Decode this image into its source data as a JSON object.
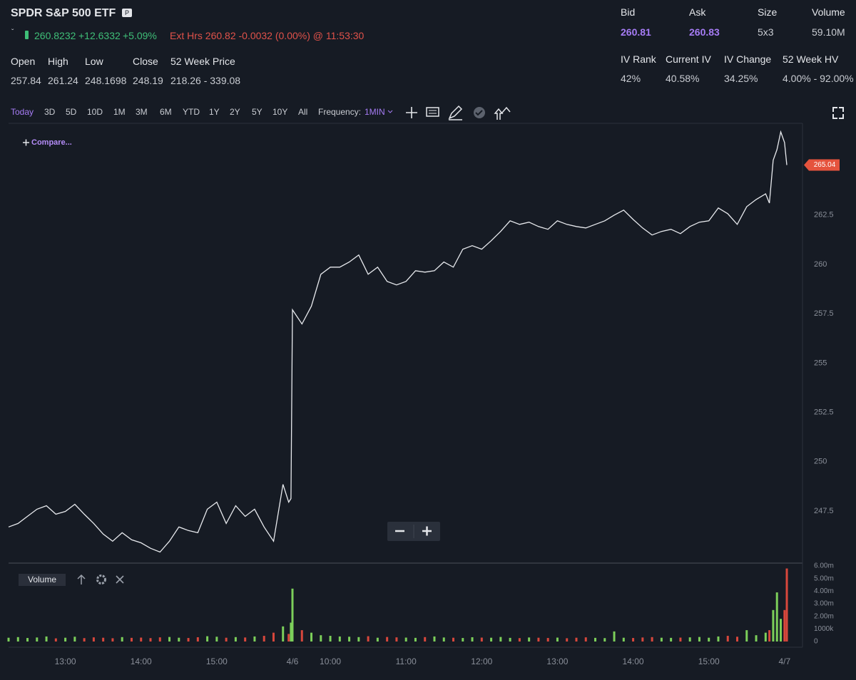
{
  "header": {
    "title": "SPDR S&P 500 ETF",
    "badge": "P",
    "price": "260.8232",
    "change": "+12.6332",
    "change_pct": "+5.09%",
    "ext_hours": "Ext Hrs 260.82 -0.0032 (0.00%) @ 11:53:30"
  },
  "stats": {
    "labels": [
      "Open",
      "High",
      "Low",
      "Close",
      "52 Week Price"
    ],
    "values": [
      "257.84",
      "261.24",
      "248.1698",
      "248.19",
      "218.26 - 339.08"
    ]
  },
  "quote": {
    "labels": [
      "Bid",
      "Ask",
      "Size",
      "Volume"
    ],
    "values": [
      "260.81",
      "260.83",
      "5x3",
      "59.10M"
    ]
  },
  "volatility": {
    "labels": [
      "IV Rank",
      "Current IV",
      "IV Change",
      "52 Week HV"
    ],
    "values": [
      "42%",
      "40.58%",
      "34.25%",
      "4.00% - 92.00%"
    ]
  },
  "toolbar": {
    "ranges": [
      "Today",
      "3D",
      "5D",
      "10D",
      "1M",
      "3M",
      "6M",
      "YTD",
      "1Y",
      "2Y",
      "5Y",
      "10Y",
      "All"
    ],
    "frequency_label": "Frequency:",
    "frequency": "1MIN"
  },
  "chart_data": [
    {
      "type": "line",
      "compare": "Compare...",
      "color": "#e8eaee",
      "tag_color": "#e5533d",
      "x": [
        12.25,
        12.375,
        12.5,
        12.625,
        12.75,
        12.875,
        13,
        13.125,
        13.25,
        13.375,
        13.5,
        13.625,
        13.75,
        13.875,
        14,
        14.125,
        14.25,
        14.375,
        14.5,
        14.625,
        14.75,
        14.875,
        15,
        15.125,
        15.25,
        15.375,
        15.5,
        15.625,
        15.75,
        15.875,
        15.95,
        15.98,
        16,
        16.125,
        16.25,
        16.375,
        16.5,
        16.625,
        16.75,
        16.875,
        17,
        17.125,
        17.25,
        17.375,
        17.5,
        17.625,
        17.75,
        17.875,
        18,
        18.125,
        18.25,
        18.375,
        18.5,
        18.625,
        18.75,
        18.875,
        19,
        19.125,
        19.25,
        19.375,
        19.5,
        19.625,
        19.75,
        19.875,
        20,
        20.125,
        20.25,
        20.375,
        20.5,
        20.625,
        20.75,
        20.875,
        21,
        21.125,
        21.25,
        21.375,
        21.5,
        21.625,
        21.75,
        21.875,
        22,
        22.125,
        22.25,
        22.3,
        22.35,
        22.4,
        22.45,
        22.5,
        22.53
      ],
      "values": [
        246.69,
        246.87,
        247.23,
        247.59,
        247.77,
        247.34,
        247.48,
        247.84,
        247.34,
        246.87,
        246.33,
        245.97,
        246.4,
        246.04,
        245.89,
        245.61,
        245.42,
        245.97,
        246.69,
        246.51,
        246.4,
        247.59,
        247.95,
        246.87,
        247.77,
        247.23,
        247.59,
        246.69,
        245.97,
        248.85,
        247.95,
        248.13,
        257.7,
        256.98,
        257.88,
        259.5,
        259.86,
        259.86,
        260.12,
        260.48,
        259.5,
        259.86,
        259.14,
        258.96,
        259.14,
        259.68,
        259.61,
        259.68,
        260.12,
        259.86,
        260.77,
        260.95,
        260.77,
        261.2,
        261.67,
        262.21,
        262.03,
        262.14,
        261.92,
        261.78,
        262.21,
        262.03,
        261.92,
        261.85,
        262.03,
        262.21,
        262.5,
        262.75,
        262.28,
        261.85,
        261.49,
        261.67,
        261.78,
        261.56,
        261.92,
        262.14,
        262.21,
        262.86,
        262.57,
        262.03,
        262.93,
        263.29,
        263.58,
        263.11,
        265.28,
        265.82,
        266.72,
        266.18,
        265.04
      ],
      "xlim": [
        12.25,
        22.69
      ],
      "ylim": [
        244.86,
        267.08
      ],
      "yticks": [
        247.5,
        250,
        252.5,
        255,
        257.5,
        260,
        262.5
      ]
    },
    {
      "type": "bar",
      "title": "Volume",
      "up_color": "#7ccf5a",
      "down_color": "#d8473c",
      "x": [
        12.25,
        12.375,
        12.5,
        12.625,
        12.75,
        12.875,
        13,
        13.125,
        13.25,
        13.375,
        13.5,
        13.625,
        13.75,
        13.875,
        14,
        14.125,
        14.25,
        14.375,
        14.5,
        14.625,
        14.75,
        14.875,
        15,
        15.125,
        15.25,
        15.375,
        15.5,
        15.625,
        15.75,
        15.875,
        15.95,
        15.98,
        16,
        16.125,
        16.25,
        16.375,
        16.5,
        16.625,
        16.75,
        16.875,
        17,
        17.125,
        17.25,
        17.375,
        17.5,
        17.625,
        17.75,
        17.875,
        18,
        18.125,
        18.25,
        18.375,
        18.5,
        18.625,
        18.75,
        18.875,
        19,
        19.125,
        19.25,
        19.375,
        19.5,
        19.625,
        19.75,
        19.875,
        20,
        20.125,
        20.25,
        20.375,
        20.5,
        20.625,
        20.75,
        20.875,
        21,
        21.125,
        21.25,
        21.375,
        21.5,
        21.625,
        21.75,
        21.875,
        22,
        22.125,
        22.25,
        22.3,
        22.35,
        22.4,
        22.45,
        22.5,
        22.53
      ],
      "values": [
        300000,
        350000,
        280000,
        320000,
        400000,
        250000,
        300000,
        380000,
        270000,
        330000,
        300000,
        260000,
        350000,
        290000,
        310000,
        270000,
        330000,
        360000,
        300000,
        280000,
        340000,
        420000,
        380000,
        300000,
        350000,
        320000,
        400000,
        450000,
        700000,
        1200000,
        600000,
        1500000,
        4200000,
        900000,
        700000,
        500000,
        450000,
        400000,
        380000,
        350000,
        420000,
        300000,
        360000,
        330000,
        310000,
        290000,
        350000,
        400000,
        320000,
        300000,
        280000,
        340000,
        310000,
        300000,
        360000,
        290000,
        270000,
        320000,
        300000,
        280000,
        310000,
        260000,
        300000,
        330000,
        290000,
        270000,
        800000,
        300000,
        280000,
        320000,
        350000,
        300000,
        290000,
        310000,
        330000,
        360000,
        300000,
        400000,
        450000,
        380000,
        900000,
        500000,
        700000,
        900000,
        2500000,
        3900000,
        1800000,
        2500000,
        5800000
      ],
      "xlim": [
        12.25,
        22.69
      ],
      "ylim": [
        0,
        6000000
      ],
      "yticks": [
        0,
        {
          "value": 1000000,
          "label": "1000k"
        },
        {
          "value": 2000000,
          "label": "2.00m"
        },
        {
          "value": 3000000,
          "label": "3.00m"
        },
        {
          "value": 4000000,
          "label": "4.00m"
        },
        {
          "value": 5000000,
          "label": "5.00m"
        },
        {
          "value": 6000000,
          "label": "6.00m"
        }
      ],
      "xticks": [
        {
          "value": 13,
          "label": "13:00"
        },
        {
          "value": 14,
          "label": "14:00"
        },
        {
          "value": 15,
          "label": "15:00"
        },
        {
          "value": 16,
          "label": "4/6"
        },
        {
          "value": 16.5,
          "label": "10:00"
        },
        {
          "value": 17.5,
          "label": "11:00"
        },
        {
          "value": 18.5,
          "label": "12:00"
        },
        {
          "value": 19.5,
          "label": "13:00"
        },
        {
          "value": 20.5,
          "label": "14:00"
        },
        {
          "value": 21.5,
          "label": "15:00"
        },
        {
          "value": 22.5,
          "label": "4/7"
        }
      ]
    }
  ]
}
